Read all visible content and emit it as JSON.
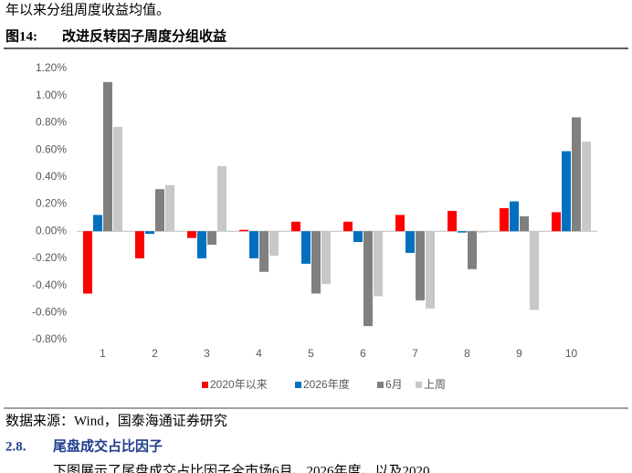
{
  "intro_text": "年以来分组周度收益均值。",
  "figure_label": "图14:",
  "figure_title": "改进反转因子周度分组收益",
  "source": "数据来源：Wind，国泰海通证券研究",
  "section_number": "2.8.",
  "section_title": "尾盘成交占比因子",
  "body_text": "下图展示了尾盘成交占比因子全市场6月、2026年度、以及2020",
  "chart_data": {
    "type": "bar",
    "categories": [
      "1",
      "2",
      "3",
      "4",
      "5",
      "6",
      "7",
      "8",
      "9",
      "10"
    ],
    "series": [
      {
        "name": "2020年以来",
        "color": "#ff0000",
        "values": [
          -0.46,
          -0.2,
          -0.05,
          0.01,
          0.07,
          0.07,
          0.12,
          0.15,
          0.17,
          0.14
        ]
      },
      {
        "name": "2026年度",
        "color": "#0070c0",
        "values": [
          0.12,
          -0.02,
          -0.2,
          -0.2,
          -0.24,
          -0.08,
          -0.16,
          -0.01,
          0.22,
          0.59
        ]
      },
      {
        "name": "6月",
        "color": "#808080",
        "values": [
          1.1,
          0.31,
          -0.1,
          -0.3,
          -0.46,
          -0.7,
          -0.51,
          -0.28,
          0.11,
          0.84
        ]
      },
      {
        "name": "上周",
        "color": "#c8c8c8",
        "values": [
          0.77,
          0.34,
          0.48,
          -0.18,
          -0.39,
          -0.48,
          -0.57,
          -0.01,
          -0.58,
          0.66
        ]
      }
    ],
    "ylim": [
      -0.8,
      1.2
    ],
    "yticks": [
      {
        "value": -0.8,
        "label": "-0.80%"
      },
      {
        "value": -0.6,
        "label": "-0.60%"
      },
      {
        "value": -0.4,
        "label": "-0.40%"
      },
      {
        "value": -0.2,
        "label": "-0.20%"
      },
      {
        "value": 0,
        "label": "0.00%"
      },
      {
        "value": 0.2,
        "label": "0.20%"
      },
      {
        "value": 0.4,
        "label": "0.40%"
      },
      {
        "value": 0.6,
        "label": "0.60%"
      },
      {
        "value": 0.8,
        "label": "0.80%"
      },
      {
        "value": 1.0,
        "label": "1.00%"
      },
      {
        "value": 1.2,
        "label": "1.20%"
      }
    ],
    "legend": "bottom"
  }
}
